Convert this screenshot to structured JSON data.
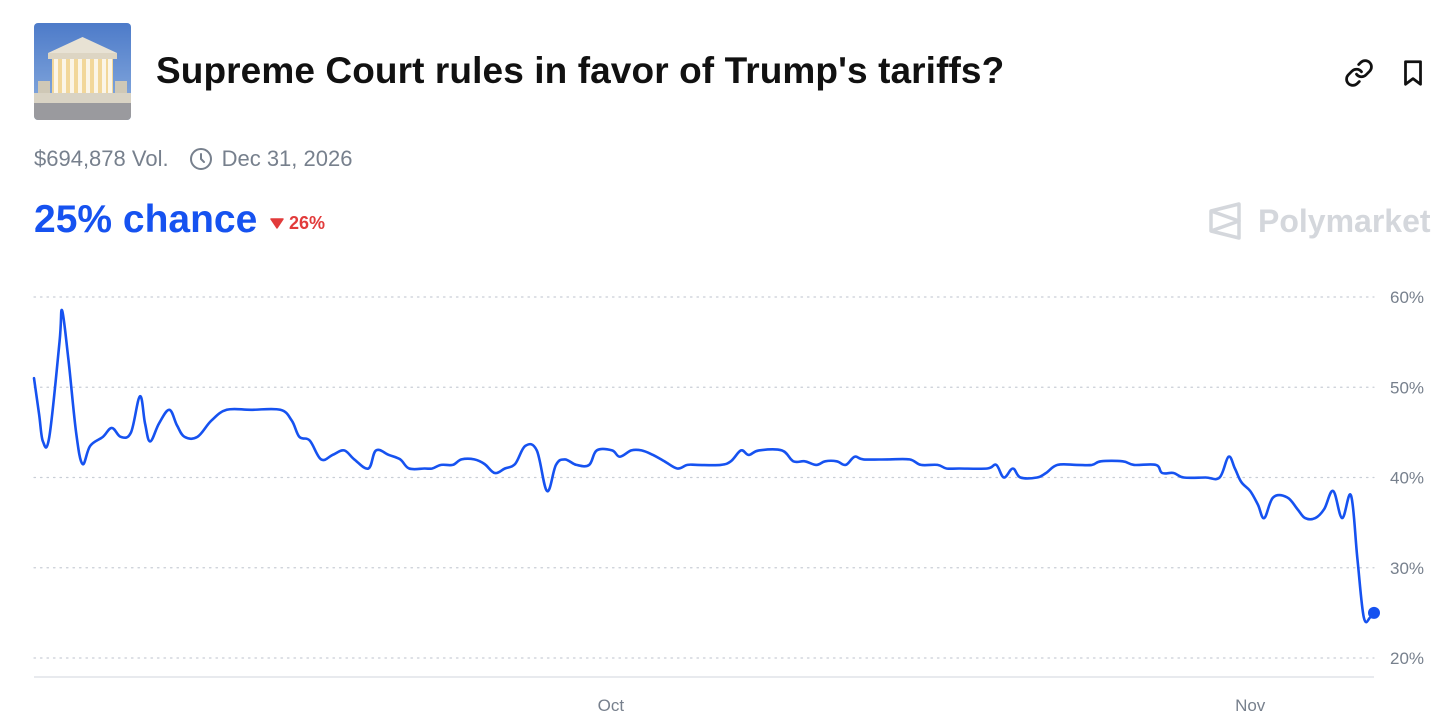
{
  "market": {
    "title": "Supreme Court rules in favor of Trump's tariffs?",
    "volume": "$694,878 Vol.",
    "end_date": "Dec 31, 2026",
    "chance": "25% chance",
    "change": "26%",
    "change_direction": "down",
    "brand": "Polymarket"
  },
  "icons": {
    "link": "link-icon",
    "bookmark": "bookmark-icon",
    "clock": "clock-icon",
    "change": "triangle-down-icon",
    "brand": "polymarket-logo-icon"
  },
  "colors": {
    "accent": "#1652f0",
    "negative": "#e23b3b",
    "muted": "#77808d",
    "brand": "#d4d7dc"
  },
  "chart_data": {
    "type": "line",
    "title": "",
    "xlabel": "",
    "ylabel": "",
    "ylim": [
      20,
      60
    ],
    "yticks": [
      "60%",
      "50%",
      "40%",
      "30%",
      "20%"
    ],
    "xticks": [
      "Oct",
      "Nov"
    ],
    "grid": true,
    "series": [
      {
        "color": "#1652f0",
        "points": [
          [
            0,
            51
          ],
          [
            0.4,
            47
          ],
          [
            0.7,
            44
          ],
          [
            1.2,
            44.5
          ],
          [
            2,
            55
          ],
          [
            2.2,
            58.5
          ],
          [
            2.7,
            53
          ],
          [
            3.3,
            45
          ],
          [
            3.8,
            41.5
          ],
          [
            4.4,
            43.5
          ],
          [
            5.4,
            44.5
          ],
          [
            6.1,
            45.5
          ],
          [
            6.8,
            44.5
          ],
          [
            7.6,
            45
          ],
          [
            8.3,
            49
          ],
          [
            8.7,
            46
          ],
          [
            9.1,
            44
          ],
          [
            9.8,
            46
          ],
          [
            10.6,
            47.5
          ],
          [
            11.2,
            45.8
          ],
          [
            11.8,
            44.5
          ],
          [
            12.8,
            44.5
          ],
          [
            13.9,
            46.3
          ],
          [
            15.1,
            47.5
          ],
          [
            17,
            47.5
          ],
          [
            19.3,
            47.5
          ],
          [
            20.2,
            46.3
          ],
          [
            20.8,
            44.5
          ],
          [
            21.6,
            44.1
          ],
          [
            22.5,
            42
          ],
          [
            23.4,
            42.5
          ],
          [
            24.3,
            43
          ],
          [
            25.1,
            42
          ],
          [
            26.2,
            41
          ],
          [
            26.8,
            43
          ],
          [
            27.8,
            42.5
          ],
          [
            28.7,
            42
          ],
          [
            29.4,
            41
          ],
          [
            30.6,
            41
          ],
          [
            31.2,
            41
          ],
          [
            31.9,
            41.4
          ],
          [
            32.8,
            41.4
          ],
          [
            33.5,
            42
          ],
          [
            34.5,
            42
          ],
          [
            35.3,
            41.5
          ],
          [
            36.1,
            40.5
          ],
          [
            36.9,
            41
          ],
          [
            37.7,
            41.5
          ],
          [
            38.5,
            43.5
          ],
          [
            39.4,
            43
          ],
          [
            40.2,
            38.5
          ],
          [
            40.9,
            41.4
          ],
          [
            41.6,
            42
          ],
          [
            42.5,
            41.4
          ],
          [
            43.5,
            41.4
          ],
          [
            44.1,
            43
          ],
          [
            45.3,
            43
          ],
          [
            45.9,
            42.3
          ],
          [
            46.8,
            43
          ],
          [
            47.6,
            43
          ],
          [
            48.5,
            42.5
          ],
          [
            49.4,
            41.8
          ],
          [
            50.4,
            41
          ],
          [
            51.2,
            41.4
          ],
          [
            52,
            41.4
          ],
          [
            53.8,
            41.4
          ],
          [
            54.6,
            41.8
          ],
          [
            55.4,
            43
          ],
          [
            56,
            42.5
          ],
          [
            56.8,
            43
          ],
          [
            58.6,
            43
          ],
          [
            59.5,
            41.8
          ],
          [
            60.4,
            41.8
          ],
          [
            61.3,
            41.4
          ],
          [
            62,
            41.8
          ],
          [
            62.9,
            41.8
          ],
          [
            63.6,
            41.4
          ],
          [
            64.3,
            42.3
          ],
          [
            65,
            42
          ],
          [
            66.9,
            42
          ],
          [
            68.6,
            42
          ],
          [
            69.5,
            41.4
          ],
          [
            70.8,
            41.4
          ],
          [
            71.5,
            41
          ],
          [
            72.5,
            41
          ],
          [
            74.7,
            41
          ],
          [
            75.4,
            41.4
          ],
          [
            76,
            40
          ],
          [
            76.7,
            41
          ],
          [
            77.3,
            40
          ],
          [
            78.6,
            40
          ],
          [
            79.3,
            40.5
          ],
          [
            80.2,
            41.4
          ],
          [
            81.7,
            41.4
          ],
          [
            82.9,
            41.4
          ],
          [
            83.6,
            41.8
          ],
          [
            85.3,
            41.8
          ],
          [
            86.2,
            41.4
          ],
          [
            87.9,
            41.4
          ],
          [
            88.4,
            40.5
          ],
          [
            89.3,
            40.5
          ],
          [
            90.1,
            40
          ],
          [
            91.8,
            40
          ],
          [
            92.9,
            40
          ],
          [
            93.6,
            42.3
          ],
          [
            94.1,
            41
          ],
          [
            94.6,
            39.5
          ],
          [
            95.3,
            38.5
          ],
          [
            95.9,
            37
          ],
          [
            96.4,
            35.5
          ],
          [
            97.1,
            37.8
          ],
          [
            98.2,
            37.8
          ],
          [
            99,
            36.5
          ],
          [
            99.6,
            35.5
          ],
          [
            100.4,
            35.5
          ],
          [
            101.1,
            36.5
          ],
          [
            101.8,
            38.5
          ],
          [
            102.5,
            35.5
          ],
          [
            103.2,
            38
          ],
          [
            103.7,
            31
          ],
          [
            104.2,
            24.5
          ],
          [
            104.7,
            24.5
          ],
          [
            105,
            25
          ]
        ],
        "x_ticks_at": {
          "Oct": 45.2,
          "Nov": 95.3
        }
      }
    ]
  }
}
